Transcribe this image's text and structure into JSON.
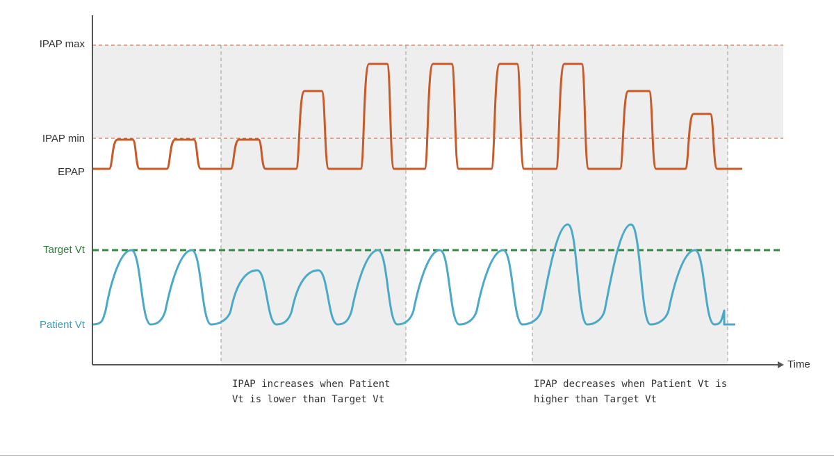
{
  "labels": {
    "ipap_max": "IPAP max",
    "ipap_min": "IPAP min",
    "epap": "EPAP",
    "target_vt": "Target Vt",
    "patient_vt": "Patient Vt",
    "time": "Time"
  },
  "captions": {
    "increase": "IPAP increases when Patient\nVt is lower than Target Vt",
    "decrease": "IPAP decreases when Patient Vt is\nhigher than Target Vt"
  },
  "colors": {
    "pressure": "#c85a28",
    "volume": "#4aa9c9",
    "target": "#2e8b3e",
    "ref_line": "#c85a28",
    "shade": "#eeeeee",
    "axis": "#555555",
    "label_green": "#2e7d3a",
    "label_blue": "#3a9fc2"
  },
  "pressure_levels": [
    "ipap_min",
    "ipap_min",
    "ipap_min",
    "mid",
    "max",
    "max",
    "max",
    "max",
    "mid",
    "low"
  ],
  "volume_levels": [
    "target",
    "target",
    "below",
    "below",
    "target",
    "target",
    "target",
    "above",
    "above",
    "target"
  ]
}
